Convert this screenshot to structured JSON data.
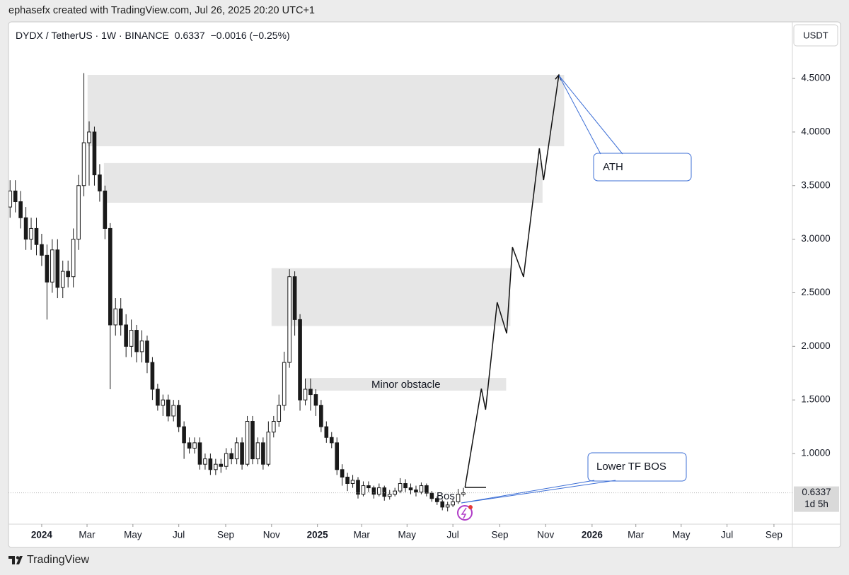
{
  "header": {
    "credit": "ephasefx created with TradingView.com, Jul 26, 2025 20:20 UTC+1",
    "symbol": "DYDX / TetherUS · 1W · BINANCE",
    "last": "0.6337",
    "change": "−0.0016 (−0.25%)",
    "currency": "USDT"
  },
  "footer": {
    "brand": "TradingView"
  },
  "chart_data": {
    "type": "candlestick",
    "x": [
      -6,
      -5,
      -4,
      -3,
      -2,
      -1,
      0,
      1,
      2,
      3,
      4,
      5,
      6,
      7,
      8,
      9,
      10,
      11,
      12,
      13,
      14,
      15,
      16,
      17,
      18,
      19,
      20,
      21,
      22,
      23,
      24,
      25,
      26,
      27,
      28,
      29,
      30,
      31,
      32,
      33,
      34,
      35,
      36,
      37,
      38,
      39,
      40,
      41,
      42,
      43,
      44,
      45,
      46,
      47,
      48,
      49,
      50,
      51,
      52,
      53,
      54,
      55,
      56,
      57,
      58,
      59,
      60,
      61,
      62,
      63,
      64,
      65,
      66,
      67,
      68,
      69,
      70,
      71,
      72,
      73,
      74,
      75,
      76,
      77,
      78,
      79,
      80
    ],
    "open": [
      3.3,
      3.45,
      3.35,
      3.2,
      3.0,
      3.1,
      2.95,
      2.85,
      2.6,
      2.9,
      2.55,
      2.7,
      2.65,
      3.0,
      3.5,
      3.9,
      4.0,
      3.6,
      3.45,
      3.1,
      2.2,
      2.35,
      2.2,
      2.0,
      2.15,
      1.95,
      2.05,
      1.85,
      1.6,
      1.45,
      1.5,
      1.35,
      1.45,
      1.25,
      1.1,
      1.05,
      1.1,
      0.9,
      0.95,
      0.85,
      0.9,
      0.88,
      1.0,
      0.95,
      1.1,
      0.9,
      1.3,
      0.95,
      1.1,
      0.9,
      1.2,
      1.3,
      1.45,
      1.85,
      2.65,
      2.25,
      1.5,
      1.6,
      1.55,
      1.45,
      1.25,
      1.15,
      1.1,
      0.85,
      0.78,
      0.72,
      0.75,
      0.62,
      0.7,
      0.68,
      0.62,
      0.68,
      0.6,
      0.62,
      0.65,
      0.72,
      0.68,
      0.66,
      0.64,
      0.7,
      0.63,
      0.58,
      0.55,
      0.5,
      0.52,
      0.55,
      0.62
    ],
    "high": [
      3.55,
      3.55,
      3.45,
      3.3,
      3.2,
      3.2,
      3.05,
      2.95,
      3.0,
      3.0,
      2.8,
      2.8,
      3.1,
      3.6,
      4.55,
      4.1,
      4.05,
      3.7,
      3.5,
      3.15,
      2.45,
      2.45,
      2.3,
      2.25,
      2.2,
      2.15,
      2.1,
      1.9,
      1.65,
      1.55,
      1.55,
      1.5,
      1.5,
      1.3,
      1.15,
      1.15,
      1.15,
      1.0,
      1.0,
      0.95,
      0.95,
      1.05,
      1.05,
      1.15,
      1.15,
      1.35,
      1.35,
      1.15,
      1.15,
      1.3,
      1.35,
      1.55,
      1.95,
      2.72,
      2.7,
      2.3,
      1.7,
      1.7,
      1.6,
      1.5,
      1.3,
      1.2,
      1.15,
      0.9,
      0.82,
      0.8,
      0.78,
      0.74,
      0.74,
      0.7,
      0.72,
      0.7,
      0.66,
      0.68,
      0.77,
      0.76,
      0.72,
      0.7,
      0.73,
      0.72,
      0.65,
      0.6,
      0.57,
      0.55,
      0.58,
      0.67,
      0.68
    ],
    "low": [
      3.2,
      3.25,
      3.1,
      2.9,
      2.9,
      2.85,
      2.75,
      2.25,
      2.5,
      2.45,
      2.45,
      2.55,
      2.55,
      2.9,
      3.4,
      3.5,
      3.5,
      3.35,
      3.0,
      1.6,
      2.1,
      2.1,
      1.9,
      1.9,
      1.85,
      1.85,
      1.75,
      1.5,
      1.4,
      1.35,
      1.3,
      1.3,
      1.2,
      0.95,
      1.0,
      1.0,
      0.85,
      0.85,
      0.8,
      0.8,
      0.82,
      0.85,
      0.9,
      0.9,
      0.85,
      0.88,
      0.9,
      0.9,
      0.85,
      0.88,
      1.15,
      1.25,
      1.4,
      1.8,
      2.1,
      1.4,
      1.45,
      1.4,
      1.35,
      1.2,
      1.1,
      1.05,
      0.8,
      0.7,
      0.65,
      0.68,
      0.58,
      0.6,
      0.64,
      0.58,
      0.6,
      0.56,
      0.57,
      0.6,
      0.63,
      0.64,
      0.62,
      0.6,
      0.62,
      0.6,
      0.55,
      0.52,
      0.47,
      0.46,
      0.5,
      0.53,
      0.6
    ],
    "close": [
      3.45,
      3.35,
      3.2,
      3.0,
      3.1,
      2.95,
      2.85,
      2.6,
      2.9,
      2.55,
      2.7,
      2.65,
      3.0,
      3.5,
      3.9,
      4.0,
      3.6,
      3.45,
      3.1,
      2.2,
      2.35,
      2.2,
      2.0,
      2.15,
      1.95,
      2.05,
      1.85,
      1.6,
      1.45,
      1.5,
      1.35,
      1.45,
      1.25,
      1.1,
      1.05,
      1.1,
      0.9,
      0.95,
      0.85,
      0.9,
      0.88,
      1.0,
      0.95,
      1.1,
      0.9,
      1.3,
      0.95,
      1.1,
      0.9,
      1.2,
      1.3,
      1.45,
      1.85,
      2.65,
      2.25,
      1.5,
      1.6,
      1.55,
      1.45,
      1.25,
      1.15,
      1.1,
      0.85,
      0.78,
      0.72,
      0.75,
      0.62,
      0.7,
      0.68,
      0.62,
      0.68,
      0.6,
      0.62,
      0.65,
      0.72,
      0.68,
      0.66,
      0.64,
      0.7,
      0.63,
      0.58,
      0.55,
      0.5,
      0.52,
      0.55,
      0.62,
      0.6337
    ],
    "up_color": "#ffffff",
    "down_color": "#1a1a1a",
    "xlim": [
      -6.3,
      142.4
    ],
    "xticks": [
      {
        "value": 0,
        "label": "2024"
      },
      {
        "value": 8.6,
        "label": "Mar"
      },
      {
        "value": 17.3,
        "label": "May"
      },
      {
        "value": 26,
        "label": "Jul"
      },
      {
        "value": 34.9,
        "label": "Sep"
      },
      {
        "value": 43.6,
        "label": "Nov"
      },
      {
        "value": 52.3,
        "label": "2025"
      },
      {
        "value": 60.7,
        "label": "Mar"
      },
      {
        "value": 69.3,
        "label": "May"
      },
      {
        "value": 78,
        "label": "Jul"
      },
      {
        "value": 86.9,
        "label": "Sep"
      },
      {
        "value": 95.6,
        "label": "Nov"
      },
      {
        "value": 104.4,
        "label": "2026"
      },
      {
        "value": 112.7,
        "label": "Mar"
      },
      {
        "value": 121.3,
        "label": "May"
      },
      {
        "value": 130,
        "label": "Jul"
      },
      {
        "value": 138.9,
        "label": "Sep"
      }
    ],
    "ylim": [
      0.341,
      5.021
    ],
    "yticks": [
      {
        "value": 1,
        "label": "1.0000"
      },
      {
        "value": 1.5,
        "label": "1.5000"
      },
      {
        "value": 2,
        "label": "2.0000"
      },
      {
        "value": 2.5,
        "label": "2.5000"
      },
      {
        "value": 3,
        "label": "3.0000"
      },
      {
        "value": 3.5,
        "label": "3.5000"
      },
      {
        "value": 4,
        "label": "4.0000"
      },
      {
        "value": 4.5,
        "label": "4.5000"
      }
    ],
    "last_price_label": "0.6337",
    "countdown": "1d 5h",
    "zones": [
      {
        "x": [
          8.7,
          99.1
        ],
        "y": [
          3.867,
          4.533
        ]
      },
      {
        "x": [
          11.8,
          95.0
        ],
        "y": [
          3.34,
          3.71
        ]
      },
      {
        "x": [
          43.6,
          88.9
        ],
        "y": [
          2.19,
          2.73
        ]
      },
      {
        "x": [
          50.1,
          88.1
        ],
        "y": [
          1.587,
          1.705
        ],
        "label": "Minor obstacle"
      }
    ],
    "projection": {
      "x": [
        80.3,
        83.4,
        84.2,
        86.4,
        88.2,
        89.3,
        91.4,
        94.4,
        95.2,
        98.1
      ],
      "y": [
        0.684,
        1.606,
        1.409,
        2.411,
        2.121,
        2.925,
        2.648,
        3.848,
        3.551,
        4.533
      ]
    },
    "annotations": [
      {
        "text": "ATH"
      },
      {
        "text": "Lower TF BOS"
      },
      {
        "text": "Bos"
      }
    ]
  }
}
